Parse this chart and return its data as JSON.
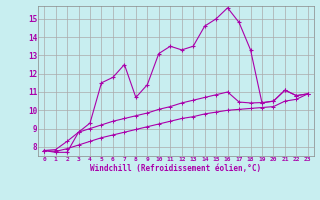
{
  "xlabel": "Windchill (Refroidissement éolien,°C)",
  "background_color": "#c8eef0",
  "line_color": "#aa00aa",
  "grid_color": "#aaaaaa",
  "xlim": [
    -0.5,
    23.5
  ],
  "ylim": [
    7.5,
    15.7
  ],
  "yticks": [
    8,
    9,
    10,
    11,
    12,
    13,
    14,
    15
  ],
  "xticks": [
    0,
    1,
    2,
    3,
    4,
    5,
    6,
    7,
    8,
    9,
    10,
    11,
    12,
    13,
    14,
    15,
    16,
    17,
    18,
    19,
    20,
    21,
    22,
    23
  ],
  "series1_x": [
    0,
    1,
    2,
    3,
    4,
    5,
    6,
    7,
    8,
    9,
    10,
    11,
    12,
    13,
    14,
    15,
    16,
    17,
    18,
    19,
    20,
    21,
    22,
    23
  ],
  "series1_y": [
    7.8,
    7.7,
    7.7,
    8.8,
    9.3,
    11.5,
    11.8,
    12.5,
    10.7,
    11.4,
    13.1,
    13.5,
    13.3,
    13.5,
    14.6,
    15.0,
    15.6,
    14.8,
    13.3,
    10.4,
    10.5,
    11.1,
    10.8,
    10.9
  ],
  "series2_x": [
    0,
    1,
    2,
    3,
    4,
    5,
    6,
    7,
    8,
    9,
    10,
    11,
    12,
    13,
    14,
    15,
    16,
    17,
    18,
    19,
    20,
    21,
    22,
    23
  ],
  "series2_y": [
    7.8,
    7.85,
    8.3,
    8.8,
    9.0,
    9.2,
    9.4,
    9.55,
    9.7,
    9.85,
    10.05,
    10.2,
    10.4,
    10.55,
    10.7,
    10.85,
    11.0,
    10.45,
    10.4,
    10.42,
    10.5,
    11.1,
    10.8,
    10.9
  ],
  "series3_x": [
    0,
    1,
    2,
    3,
    4,
    5,
    6,
    7,
    8,
    9,
    10,
    11,
    12,
    13,
    14,
    15,
    16,
    17,
    18,
    19,
    20,
    21,
    22,
    23
  ],
  "series3_y": [
    7.8,
    7.75,
    7.9,
    8.1,
    8.3,
    8.5,
    8.65,
    8.8,
    8.95,
    9.1,
    9.25,
    9.4,
    9.55,
    9.65,
    9.8,
    9.9,
    10.0,
    10.05,
    10.1,
    10.15,
    10.2,
    10.5,
    10.6,
    10.9
  ]
}
